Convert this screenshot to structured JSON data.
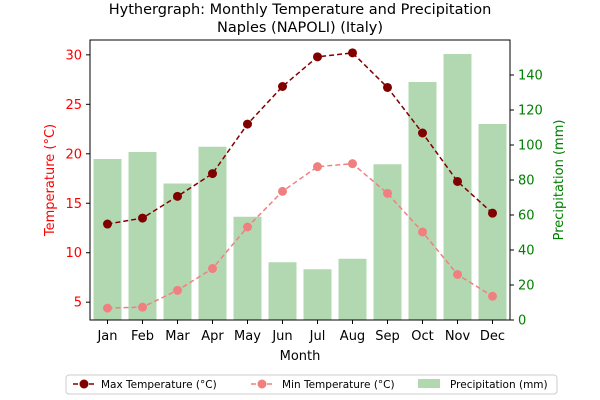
{
  "chart_data": {
    "type": "bar+line",
    "title_line1": "Hythergraph: Monthly Temperature and Precipitation",
    "title_line2": "Naples (NAPOLI) (Italy)",
    "xlabel": "Month",
    "ylabel_left": "Temperature (°C)",
    "ylabel_right": "Precipitation (mm)",
    "categories": [
      "Jan",
      "Feb",
      "Mar",
      "Apr",
      "May",
      "Jun",
      "Jul",
      "Aug",
      "Sep",
      "Oct",
      "Nov",
      "Dec"
    ],
    "ylim_left": [
      3.2,
      31.5
    ],
    "ylim_right": [
      0,
      160
    ],
    "left_ticks": [
      5,
      10,
      15,
      20,
      25,
      30
    ],
    "right_ticks": [
      0,
      20,
      40,
      60,
      80,
      100,
      120,
      140
    ],
    "series": [
      {
        "name": "Max Temperature (°C)",
        "kind": "line",
        "axis": "left",
        "color": "#800000",
        "style": "dashed",
        "marker": "circle",
        "values": [
          12.9,
          13.5,
          15.7,
          18.0,
          23.0,
          26.8,
          29.8,
          30.2,
          26.7,
          22.1,
          17.2,
          14.0
        ]
      },
      {
        "name": "Min Temperature (°C)",
        "kind": "line",
        "axis": "left",
        "color": "#f08080",
        "style": "dashed",
        "marker": "circle",
        "values": [
          4.4,
          4.5,
          6.2,
          8.4,
          12.6,
          16.2,
          18.7,
          19.0,
          16.0,
          12.1,
          7.8,
          5.6
        ]
      },
      {
        "name": "Precipitation (mm)",
        "kind": "bar",
        "axis": "right",
        "color": "#b2d8b2",
        "values": [
          92,
          96,
          78,
          99,
          59,
          33,
          29,
          35,
          89,
          136,
          152,
          112
        ]
      }
    ],
    "legend_position": "bottom-center",
    "grid": false,
    "colors": {
      "left_axis": "#ff0000",
      "right_axis": "#008000",
      "max_line": "#800000",
      "min_line": "#f08080",
      "bars": "#b2d8b2"
    }
  }
}
